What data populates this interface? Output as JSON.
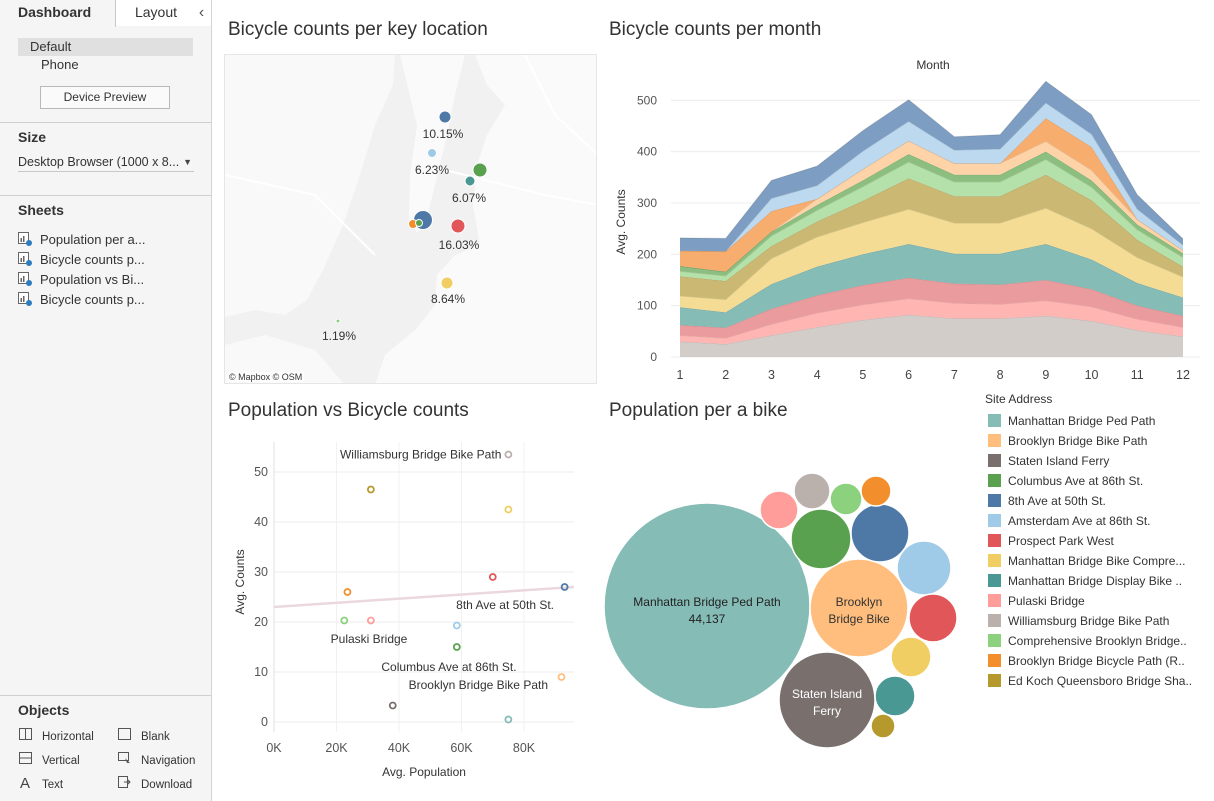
{
  "left_pane": {
    "tabs": {
      "dashboard": "Dashboard",
      "layout": "Layout",
      "collapse": "‹"
    },
    "device_list": {
      "default": "Default",
      "phone": "Phone"
    },
    "device_preview_button": "Device Preview",
    "size": {
      "title": "Size",
      "selected": "Desktop Browser (1000 x 8..."
    },
    "sheets": {
      "title": "Sheets",
      "items": [
        "Population per a...",
        "Bicycle counts p...",
        "Population vs Bi...",
        "Bicycle counts p..."
      ]
    },
    "objects": {
      "title": "Objects",
      "items": [
        "Horizontal",
        "Blank",
        "Vertical",
        "Navigation",
        "Text",
        "Download"
      ],
      "icons": [
        "horizontal-icon",
        "blank-icon",
        "vertical-icon",
        "navigation-icon",
        "text-icon",
        "download-icon"
      ]
    }
  },
  "titles": {
    "map": "Bicycle counts per key location",
    "month": "Bicycle counts per month",
    "scatter": "Population vs Bicycle counts",
    "bubble": "Population per a bike"
  },
  "map": {
    "credit": "© Mapbox © OSM",
    "points": [
      {
        "label": "10.15%",
        "color": "#4e79a7"
      },
      {
        "label": "6.23%",
        "color": "#a0cbe8"
      },
      {
        "label": "6.07%",
        "color": "#59a14f"
      },
      {
        "label": "16.03%",
        "color": "#e15759"
      },
      {
        "label": "8.64%",
        "color": "#f1ce63"
      },
      {
        "label": "1.19%",
        "color": "#8cd17d"
      }
    ]
  },
  "legend": {
    "title": "Site Address",
    "items": [
      {
        "name": "Manhattan Bridge Ped Path",
        "color": "#86bcb6"
      },
      {
        "name": "Brooklyn Bridge Bike Path",
        "color": "#ffbe7d"
      },
      {
        "name": "Staten Island Ferry",
        "color": "#79706e"
      },
      {
        "name": "Columbus Ave at 86th St.",
        "color": "#59a14f"
      },
      {
        "name": "8th Ave at 50th St.",
        "color": "#4e79a7"
      },
      {
        "name": "Amsterdam Ave at 86th St.",
        "color": "#a0cbe8"
      },
      {
        "name": "Prospect Park West",
        "color": "#e15759"
      },
      {
        "name": "Manhattan Bridge Bike Compre...",
        "color": "#f1ce63"
      },
      {
        "name": "Manhattan Bridge Display Bike ..",
        "color": "#499894"
      },
      {
        "name": "Pulaski Bridge",
        "color": "#ff9d9a"
      },
      {
        "name": "Williamsburg Bridge Bike Path",
        "color": "#bab0ac"
      },
      {
        "name": "Comprehensive Brooklyn Bridge..",
        "color": "#8cd17d"
      },
      {
        "name": "Brooklyn Bridge Bicycle Path (R..",
        "color": "#f28e2b"
      },
      {
        "name": "Ed Koch Queensboro Bridge Sha..",
        "color": "#b6992d"
      }
    ]
  },
  "chart_data": [
    {
      "type": "area",
      "title": "Bicycle counts per month",
      "top_label": "Month",
      "xlabel": "",
      "ylabel": "Avg. Counts",
      "x": [
        1,
        2,
        3,
        4,
        5,
        6,
        7,
        8,
        9,
        10,
        11,
        12
      ],
      "ylim": [
        0,
        520
      ],
      "yticks": [
        0,
        100,
        200,
        300,
        400,
        500
      ],
      "series": [
        {
          "name": "Staten Island Ferry",
          "color": "#d3cdca",
          "values": [
            30,
            25,
            42,
            58,
            72,
            82,
            75,
            75,
            80,
            70,
            52,
            40
          ]
        },
        {
          "name": "Pulaski Bridge",
          "color": "#ffb6b3",
          "values": [
            12,
            12,
            22,
            28,
            30,
            32,
            30,
            28,
            30,
            28,
            22,
            18
          ]
        },
        {
          "name": "Prospect Park West",
          "color": "#ea9b9d",
          "values": [
            20,
            20,
            30,
            34,
            38,
            40,
            38,
            38,
            40,
            34,
            26,
            22
          ]
        },
        {
          "name": "Manhattan Bridge Display Bike ..",
          "color": "#86bcb6",
          "values": [
            35,
            30,
            48,
            56,
            60,
            66,
            58,
            60,
            70,
            58,
            44,
            36
          ]
        },
        {
          "name": "Manhattan Bridge Bike Compre...",
          "color": "#f5dc95",
          "values": [
            22,
            25,
            50,
            58,
            62,
            68,
            60,
            60,
            70,
            60,
            50,
            40
          ]
        },
        {
          "name": "Ed Koch Queensboro Bridge Sha..",
          "color": "#cbb973",
          "values": [
            38,
            36,
            24,
            30,
            42,
            60,
            52,
            52,
            65,
            55,
            34,
            20
          ]
        },
        {
          "name": "Comprehensive Brooklyn Bridge..",
          "color": "#b4e0a9",
          "values": [
            10,
            10,
            20,
            22,
            28,
            32,
            28,
            28,
            30,
            26,
            20,
            18
          ]
        },
        {
          "name": "Columbus Ave at 86th St.",
          "color": "#8cbf7f",
          "values": [
            10,
            8,
            8,
            10,
            12,
            15,
            14,
            14,
            15,
            13,
            10,
            8
          ]
        },
        {
          "name": "Brooklyn Bridge Bike Path",
          "color": "#ffd3a8",
          "values": [
            0,
            0,
            0,
            12,
            22,
            26,
            22,
            22,
            20,
            20,
            10,
            6
          ]
        },
        {
          "name": "Brooklyn Bridge Bicycle Path (R..",
          "color": "#f7ad6e",
          "values": [
            30,
            40,
            40,
            0,
            0,
            0,
            0,
            0,
            45,
            45,
            0,
            0
          ]
        },
        {
          "name": "Amsterdam Ave at 86th St.",
          "color": "#bcd9ef",
          "values": [
            0,
            0,
            25,
            26,
            35,
            38,
            26,
            28,
            30,
            25,
            20,
            10
          ]
        },
        {
          "name": "8th Ave at 50th St.",
          "color": "#7d9ec2",
          "values": [
            25,
            25,
            35,
            38,
            40,
            42,
            26,
            28,
            42,
            38,
            28,
            12
          ]
        }
      ]
    },
    {
      "type": "scatter",
      "title": "Population vs Bicycle counts",
      "xlabel": "Avg. Population",
      "ylabel": "Avg. Counts",
      "xticks": [
        "0K",
        "20K",
        "40K",
        "60K",
        "80K"
      ],
      "xlim": [
        0,
        96000
      ],
      "ylim": [
        -2,
        56
      ],
      "yticks": [
        0,
        10,
        20,
        30,
        40,
        50
      ],
      "trend": {
        "x": [
          0,
          96000
        ],
        "y": [
          23,
          27
        ]
      },
      "points": [
        {
          "x": 75000,
          "y": 53.5,
          "color": "#bab0ac",
          "label": "Williamsburg Bridge Bike Path"
        },
        {
          "x": 31000,
          "y": 46.5,
          "color": "#b6992d",
          "label": ""
        },
        {
          "x": 75000,
          "y": 42.5,
          "color": "#f1ce63",
          "label": ""
        },
        {
          "x": 70000,
          "y": 29,
          "color": "#e15759",
          "label": ""
        },
        {
          "x": 93000,
          "y": 27,
          "color": "#4e79a7",
          "label": "8th Ave at 50th St."
        },
        {
          "x": 23500,
          "y": 26,
          "color": "#f28e2b",
          "label": ""
        },
        {
          "x": 22500,
          "y": 20.3,
          "color": "#8cd17d",
          "label": ""
        },
        {
          "x": 31000,
          "y": 20.3,
          "color": "#ff9d9a",
          "label": "Pulaski Bridge"
        },
        {
          "x": 58500,
          "y": 19.3,
          "color": "#a0cbe8",
          "label": ""
        },
        {
          "x": 58500,
          "y": 15,
          "color": "#59a14f",
          "label": "Columbus Ave at 86th St."
        },
        {
          "x": 92000,
          "y": 9,
          "color": "#ffbe7d",
          "label": "Brooklyn Bridge Bike Path"
        },
        {
          "x": 38000,
          "y": 3.3,
          "color": "#79706e",
          "label": ""
        },
        {
          "x": 75000,
          "y": 0.5,
          "color": "#86bcb6",
          "label": ""
        }
      ]
    },
    {
      "type": "bubble",
      "title": "Population per a bike",
      "bubbles": [
        {
          "name": "Manhattan Bridge Ped Path",
          "value_label": "44,137",
          "color": "#86bcb6",
          "show_label": true
        },
        {
          "name": "Brooklyn Bridge Bike",
          "value_label": "",
          "color": "#ffbe7d",
          "show_label": true
        },
        {
          "name": "Staten Island Ferry",
          "value_label": "",
          "color": "#79706e",
          "show_label": true
        },
        {
          "name": "Columbus Ave at 86th St.",
          "value_label": "",
          "color": "#59a14f",
          "show_label": false
        },
        {
          "name": "8th Ave at 50th St.",
          "value_label": "",
          "color": "#4e79a7",
          "show_label": false
        },
        {
          "name": "Amsterdam Ave at 86th St.",
          "value_label": "",
          "color": "#a0cbe8",
          "show_label": false
        },
        {
          "name": "Prospect Park West",
          "value_label": "",
          "color": "#e15759",
          "show_label": false
        },
        {
          "name": "Manhattan Bridge Bike Compre...",
          "value_label": "",
          "color": "#f1ce63",
          "show_label": false
        },
        {
          "name": "Manhattan Bridge Display Bike ..",
          "value_label": "",
          "color": "#499894",
          "show_label": false
        },
        {
          "name": "Pulaski Bridge",
          "value_label": "",
          "color": "#ff9d9a",
          "show_label": false
        },
        {
          "name": "Williamsburg Bridge Bike Path",
          "value_label": "",
          "color": "#bab0ac",
          "show_label": false
        },
        {
          "name": "Comprehensive Brooklyn Bridge..",
          "value_label": "",
          "color": "#8cd17d",
          "show_label": false
        },
        {
          "name": "Brooklyn Bridge Bicycle Path (R..",
          "value_label": "",
          "color": "#f28e2b",
          "show_label": false
        },
        {
          "name": "Ed Koch Queensboro Bridge Sha..",
          "value_label": "",
          "color": "#b6992d",
          "show_label": false
        }
      ]
    }
  ]
}
